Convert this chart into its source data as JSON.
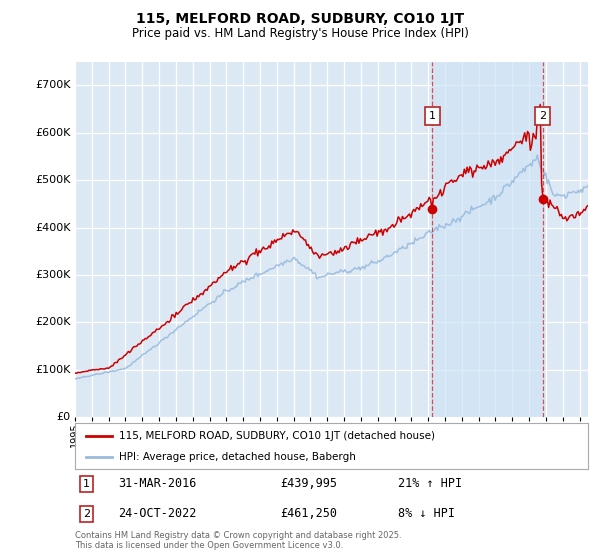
{
  "title": "115, MELFORD ROAD, SUDBURY, CO10 1JT",
  "subtitle": "Price paid vs. HM Land Registry's House Price Index (HPI)",
  "bg_color": "#dce9f5",
  "fig_bg_color": "#ffffff",
  "grid_color": "#ffffff",
  "red_color": "#cc0000",
  "blue_color": "#99bbdd",
  "shade_color": "#d0e4f5",
  "yticks": [
    0,
    100000,
    200000,
    300000,
    400000,
    500000,
    600000,
    700000
  ],
  "ytick_labels": [
    "£0",
    "£100K",
    "£200K",
    "£300K",
    "£400K",
    "£500K",
    "£600K",
    "£700K"
  ],
  "xmin": 1995.0,
  "xmax": 2025.5,
  "ymin": 0,
  "ymax": 750000,
  "marker1_x": 2016.25,
  "marker1_y": 439995,
  "marker2_x": 2022.81,
  "marker2_y": 461250,
  "marker1_date_str": "31-MAR-2016",
  "marker1_price": 439995,
  "marker1_pct_str": "21% ↑ HPI",
  "marker2_date_str": "24-OCT-2022",
  "marker2_price": 461250,
  "marker2_pct_str": "8% ↓ HPI",
  "legend_line1": "115, MELFORD ROAD, SUDBURY, CO10 1JT (detached house)",
  "legend_line2": "HPI: Average price, detached house, Babergh",
  "footnote": "Contains HM Land Registry data © Crown copyright and database right 2025.\nThis data is licensed under the Open Government Licence v3.0."
}
